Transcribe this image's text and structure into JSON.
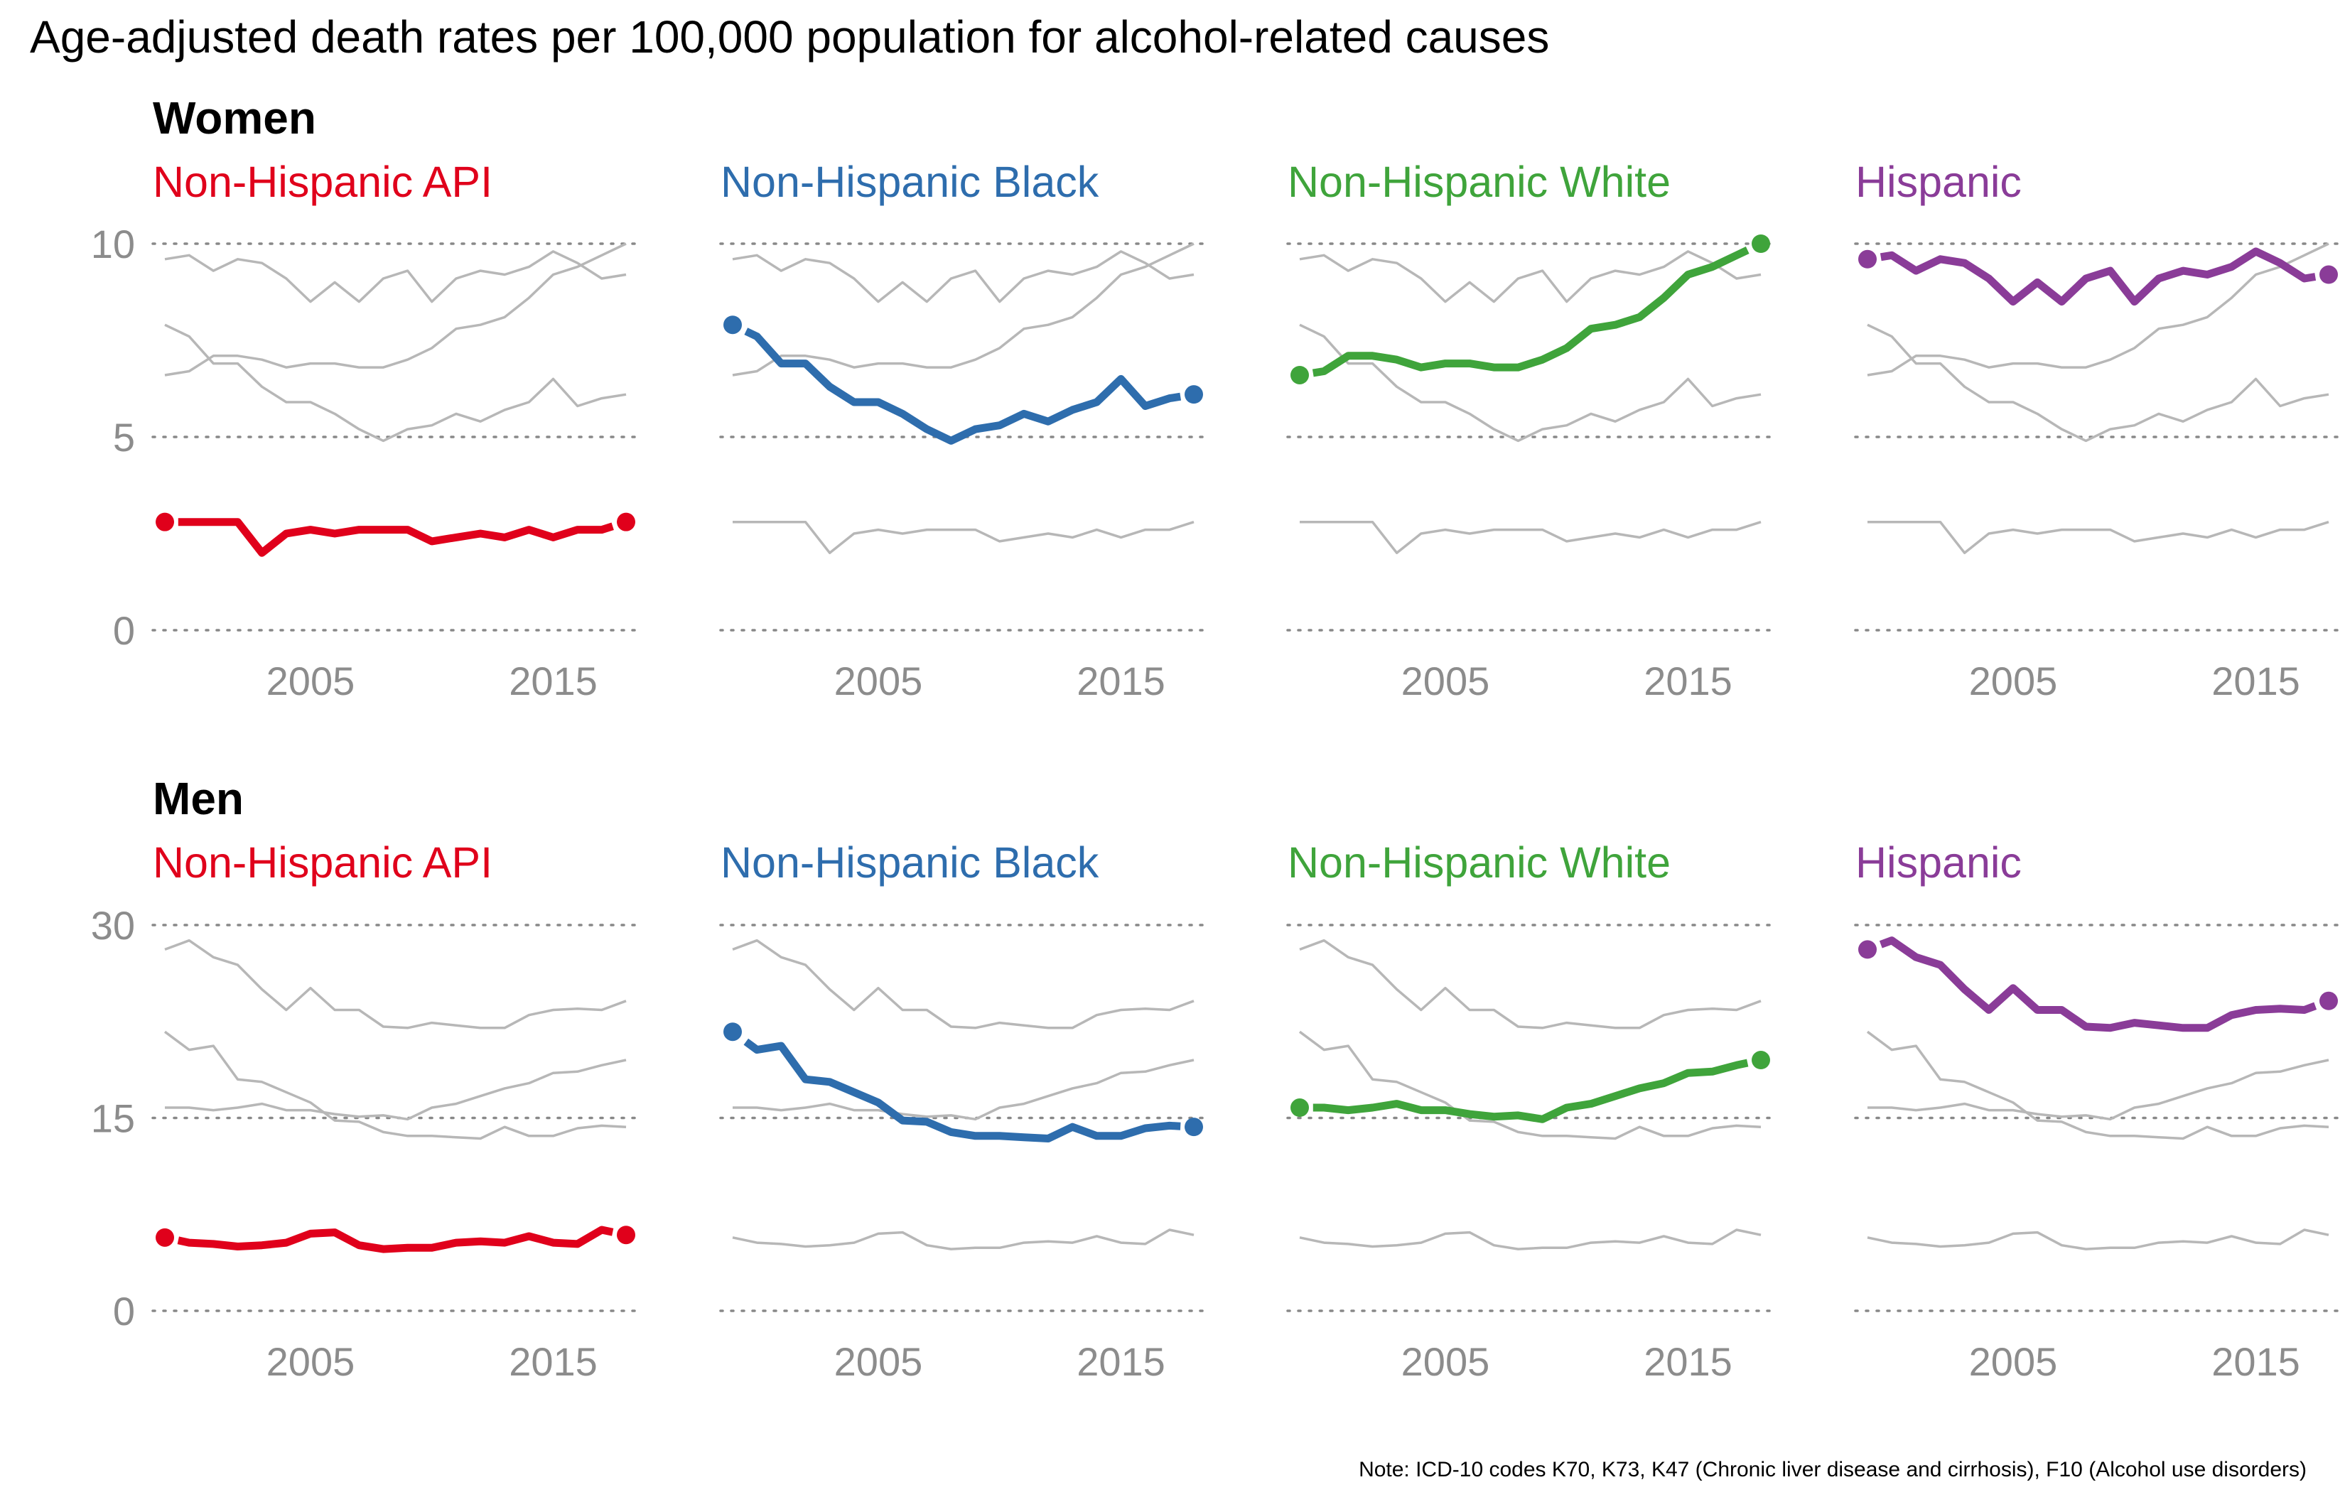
{
  "title": "Age-adjusted death rates per 100,000 population for alcohol-related causes",
  "note": "Note: ICD-10 codes K70, K73, K47 (Chronic liver disease and cirrhosis), F10 (Alcohol use disorders)",
  "colors": {
    "Non-Hispanic API": "#e0001b",
    "Non-Hispanic Black": "#2e6dad",
    "Non-Hispanic White": "#3fa43b",
    "Hispanic": "#8a3c98",
    "background_series": "#b7b7b7",
    "grid": "#888888",
    "tick_text": "#8c8c8c"
  },
  "chart_data": [
    {
      "type": "line",
      "section": "Women",
      "x": [
        1999,
        2000,
        2001,
        2002,
        2003,
        2004,
        2005,
        2006,
        2007,
        2008,
        2009,
        2010,
        2011,
        2012,
        2013,
        2014,
        2015,
        2016,
        2017,
        2018
      ],
      "ylim": [
        0,
        10
      ],
      "yticks": [
        0,
        5,
        10
      ],
      "xticks": [
        2005,
        2015
      ],
      "series": [
        {
          "name": "Non-Hispanic API",
          "values": [
            2.8,
            2.8,
            2.8,
            2.8,
            2.0,
            2.5,
            2.6,
            2.5,
            2.6,
            2.6,
            2.6,
            2.3,
            2.4,
            2.5,
            2.4,
            2.6,
            2.4,
            2.6,
            2.6,
            2.8
          ]
        },
        {
          "name": "Non-Hispanic Black",
          "values": [
            7.9,
            7.6,
            6.9,
            6.9,
            6.3,
            5.9,
            5.9,
            5.6,
            5.2,
            4.9,
            5.2,
            5.3,
            5.6,
            5.4,
            5.7,
            5.9,
            6.5,
            5.8,
            6.0,
            6.1
          ]
        },
        {
          "name": "Non-Hispanic White",
          "values": [
            6.6,
            6.7,
            7.1,
            7.1,
            7.0,
            6.8,
            6.9,
            6.9,
            6.8,
            6.8,
            7.0,
            7.3,
            7.8,
            7.9,
            8.1,
            8.6,
            9.2,
            9.4,
            9.7,
            10.0
          ]
        },
        {
          "name": "Hispanic",
          "values": [
            9.6,
            9.7,
            9.3,
            9.6,
            9.5,
            9.1,
            8.5,
            9.0,
            8.5,
            9.1,
            9.3,
            8.5,
            9.1,
            9.3,
            9.2,
            9.4,
            9.8,
            9.5,
            9.1,
            9.2
          ]
        }
      ]
    },
    {
      "type": "line",
      "section": "Men",
      "x": [
        1999,
        2000,
        2001,
        2002,
        2003,
        2004,
        2005,
        2006,
        2007,
        2008,
        2009,
        2010,
        2011,
        2012,
        2013,
        2014,
        2015,
        2016,
        2017,
        2018
      ],
      "ylim": [
        0,
        30
      ],
      "yticks": [
        0,
        15,
        30
      ],
      "xticks": [
        2005,
        2015
      ],
      "series": [
        {
          "name": "Non-Hispanic API",
          "values": [
            5.7,
            5.3,
            5.2,
            5.0,
            5.1,
            5.3,
            6.0,
            6.1,
            5.1,
            4.8,
            4.9,
            4.9,
            5.3,
            5.4,
            5.3,
            5.8,
            5.3,
            5.2,
            6.3,
            5.9
          ]
        },
        {
          "name": "Non-Hispanic Black",
          "values": [
            21.7,
            20.3,
            20.6,
            18.0,
            17.8,
            17.0,
            16.2,
            14.8,
            14.7,
            13.9,
            13.6,
            13.6,
            13.5,
            13.4,
            14.3,
            13.6,
            13.6,
            14.2,
            14.4,
            14.3
          ]
        },
        {
          "name": "Non-Hispanic White",
          "values": [
            15.8,
            15.8,
            15.6,
            15.8,
            16.1,
            15.6,
            15.6,
            15.3,
            15.1,
            15.2,
            14.9,
            15.8,
            16.1,
            16.7,
            17.3,
            17.7,
            18.5,
            18.6,
            19.1,
            19.5
          ]
        },
        {
          "name": "Hispanic",
          "values": [
            28.1,
            28.8,
            27.5,
            26.9,
            25.0,
            23.4,
            25.1,
            23.4,
            23.4,
            22.1,
            22.0,
            22.4,
            22.2,
            22.0,
            22.0,
            23.0,
            23.4,
            23.5,
            23.4,
            24.1
          ]
        }
      ]
    }
  ]
}
